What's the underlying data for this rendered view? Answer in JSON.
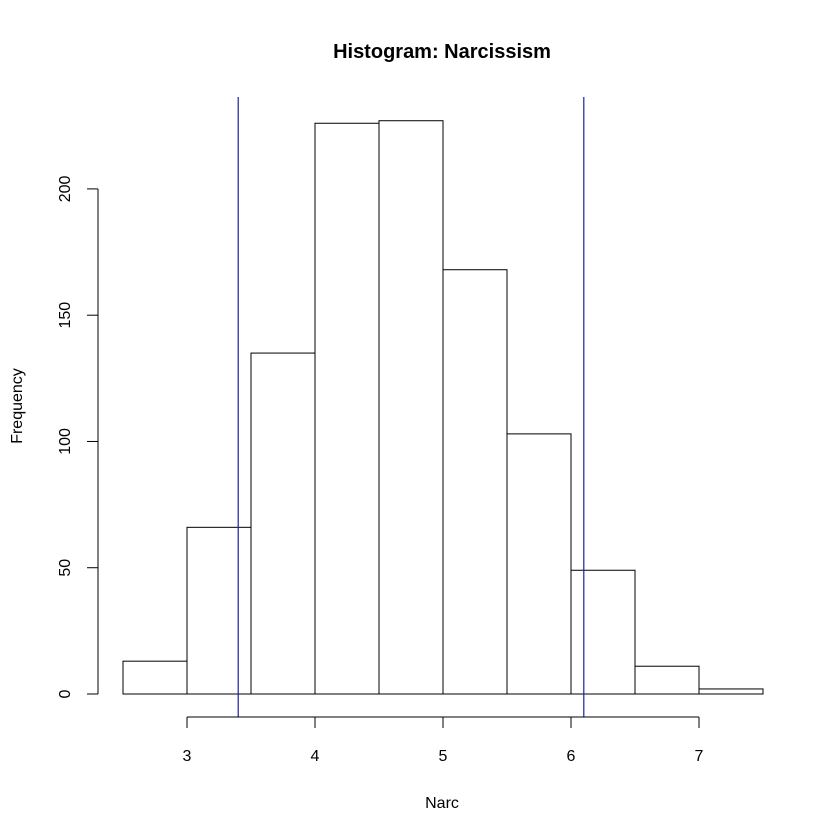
{
  "chart_data": {
    "type": "bar",
    "title": "Histogram: Narcissism",
    "xlabel": "Narc",
    "ylabel": "Frequency",
    "bin_edges": [
      2.5,
      3.0,
      3.5,
      4.0,
      4.5,
      5.0,
      5.5,
      6.0,
      6.5,
      7.0,
      7.5
    ],
    "values": [
      13,
      66,
      135,
      226,
      227,
      168,
      103,
      49,
      11,
      2
    ],
    "xlim": [
      2.5,
      7.5
    ],
    "ylim": [
      0,
      236
    ],
    "x_ticks": [
      "3",
      "4",
      "5",
      "6",
      "7"
    ],
    "y_ticks": [
      "0",
      "50",
      "100",
      "150",
      "200"
    ],
    "reference_lines": [
      {
        "x": 3.4,
        "color": "#1f1f9c"
      },
      {
        "x": 6.1,
        "color": "#1f1f9c"
      }
    ],
    "grid": false,
    "bar_fill": "#ffffff",
    "bar_stroke": "#000000"
  }
}
